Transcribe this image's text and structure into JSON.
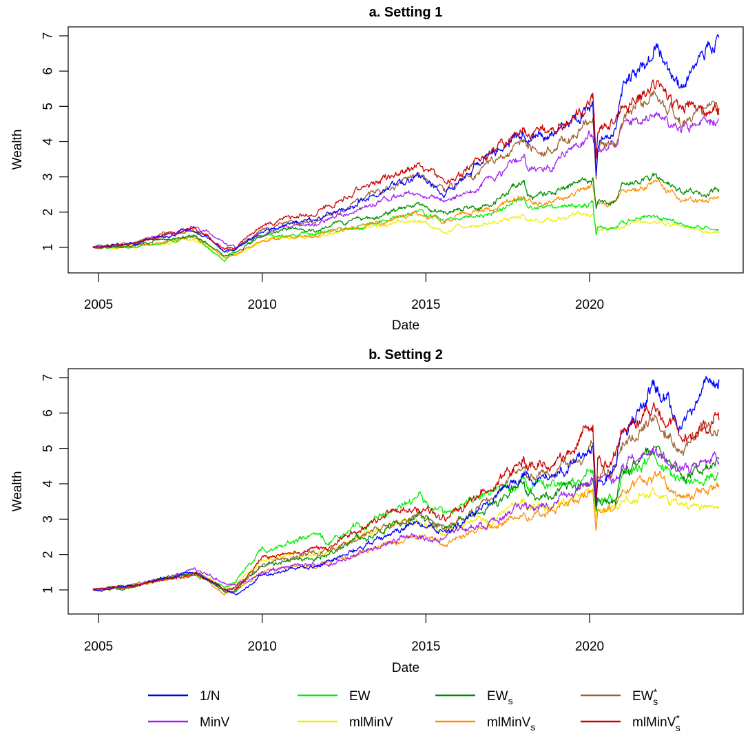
{
  "figure": {
    "legend": {
      "placement": "bottom",
      "columns": 4,
      "entries": [
        {
          "key": "1/N",
          "base": "1/N",
          "sup": "",
          "sub": "",
          "color": "#0000ff"
        },
        {
          "key": "EW",
          "base": "EW",
          "sup": "",
          "sub": "",
          "color": "#00ee00"
        },
        {
          "key": "EWs",
          "base": "EW",
          "sup": "",
          "sub": "s",
          "color": "#008b00"
        },
        {
          "key": "EW*s",
          "base": "EW",
          "sup": "*",
          "sub": "s",
          "color": "#9c6130"
        },
        {
          "key": "MinV",
          "base": "MinV",
          "sup": "",
          "sub": "",
          "color": "#a020f0"
        },
        {
          "key": "mlMinV",
          "base": "mlMinV",
          "sup": "",
          "sub": "",
          "color": "#eeee00"
        },
        {
          "key": "mlMinVs",
          "base": "mlMinV",
          "sup": "",
          "sub": "s",
          "color": "#ff8c00"
        },
        {
          "key": "mlMinV*s",
          "base": "mlMinV",
          "sup": "*",
          "sub": "s",
          "color": "#cd0000"
        }
      ]
    }
  },
  "chart_data": [
    {
      "type": "line",
      "title": "a. Setting 1",
      "xlabel": "Date",
      "ylabel": "Wealth",
      "xlim": [
        2004.0,
        2024.6
      ],
      "ylim": [
        0.3,
        7.25
      ],
      "xticks": [
        2005,
        2010,
        2015,
        2020
      ],
      "xtick_labels": [
        "2005",
        "2010",
        "2015",
        "2020"
      ],
      "yticks": [
        1,
        2,
        3,
        4,
        5,
        6,
        7
      ],
      "ytick_labels": [
        "1",
        "2",
        "3",
        "4",
        "5",
        "6",
        "7"
      ],
      "grid": false,
      "x": [
        2004.83,
        2006.0,
        2007.0,
        2007.9,
        2008.3,
        2008.85,
        2009.2,
        2010.0,
        2011.0,
        2011.6,
        2012.0,
        2013.0,
        2014.0,
        2014.8,
        2015.6,
        2016.0,
        2017.0,
        2018.0,
        2018.1,
        2018.9,
        2019.5,
        2020.1,
        2020.2,
        2020.25,
        2020.8,
        2021.0,
        2021.7,
        2022.0,
        2022.8,
        2023.5,
        2023.95
      ],
      "series": [
        {
          "name": "1/N",
          "values": [
            1.0,
            1.1,
            1.35,
            1.5,
            1.3,
            0.9,
            0.95,
            1.45,
            1.7,
            1.75,
            1.9,
            2.3,
            2.75,
            3.0,
            2.6,
            2.9,
            3.6,
            4.3,
            4.15,
            4.2,
            4.6,
            5.1,
            3.2,
            3.9,
            4.4,
            5.5,
            6.2,
            6.6,
            5.6,
            6.7,
            6.95
          ]
        },
        {
          "name": "EW",
          "values": [
            1.0,
            1.0,
            1.15,
            1.3,
            1.0,
            0.6,
            0.95,
            1.35,
            1.4,
            1.35,
            1.45,
            1.6,
            1.8,
            2.0,
            1.75,
            1.85,
            2.0,
            2.4,
            2.1,
            2.1,
            2.15,
            2.2,
            1.35,
            1.55,
            1.5,
            1.7,
            1.85,
            1.9,
            1.6,
            1.55,
            1.5
          ]
        },
        {
          "name": "EWs",
          "values": [
            1.0,
            1.05,
            1.2,
            1.35,
            1.15,
            0.75,
            0.85,
            1.35,
            1.5,
            1.45,
            1.6,
            1.8,
            2.0,
            2.2,
            1.9,
            2.05,
            2.2,
            2.9,
            2.5,
            2.55,
            2.75,
            2.95,
            2.1,
            2.25,
            2.3,
            2.7,
            2.95,
            3.0,
            2.6,
            2.6,
            2.65
          ]
        },
        {
          "name": "EW*s",
          "values": [
            1.0,
            1.1,
            1.35,
            1.45,
            1.3,
            0.9,
            0.95,
            1.55,
            1.7,
            1.75,
            1.85,
            2.3,
            2.75,
            3.0,
            2.6,
            2.8,
            3.4,
            4.0,
            3.75,
            3.85,
            4.2,
            4.6,
            3.0,
            3.8,
            3.9,
            4.6,
            5.1,
            5.4,
            4.6,
            4.8,
            4.75
          ]
        },
        {
          "name": "MinV",
          "values": [
            1.0,
            1.1,
            1.35,
            1.55,
            1.45,
            1.1,
            1.0,
            1.4,
            1.6,
            1.65,
            1.8,
            2.1,
            2.45,
            2.55,
            2.35,
            2.45,
            2.9,
            3.6,
            3.2,
            3.3,
            3.8,
            4.2,
            3.6,
            3.8,
            3.9,
            4.4,
            4.7,
            5.0,
            4.3,
            4.6,
            4.65
          ]
        },
        {
          "name": "mlMinV",
          "values": [
            1.0,
            1.0,
            1.1,
            1.25,
            1.05,
            0.7,
            0.8,
            1.2,
            1.3,
            1.3,
            1.4,
            1.55,
            1.7,
            1.75,
            1.45,
            1.6,
            1.7,
            1.95,
            1.75,
            1.8,
            1.9,
            2.0,
            1.55,
            1.5,
            1.55,
            1.6,
            1.75,
            1.75,
            1.6,
            1.45,
            1.4
          ]
        },
        {
          "name": "mlMinVs",
          "values": [
            1.0,
            1.05,
            1.15,
            1.3,
            1.1,
            0.7,
            0.8,
            1.2,
            1.3,
            1.3,
            1.4,
            1.6,
            1.8,
            2.0,
            1.75,
            1.9,
            2.1,
            2.45,
            2.25,
            2.3,
            2.5,
            2.75,
            2.15,
            2.25,
            2.25,
            2.5,
            2.7,
            2.75,
            2.4,
            2.35,
            2.4
          ]
        },
        {
          "name": "mlMinV*s",
          "values": [
            1.0,
            1.1,
            1.35,
            1.5,
            1.35,
            0.95,
            1.0,
            1.65,
            1.85,
            1.95,
            2.2,
            2.65,
            3.05,
            3.3,
            2.9,
            3.1,
            3.7,
            4.5,
            4.2,
            4.25,
            4.75,
            5.3,
            3.6,
            4.4,
            4.6,
            5.1,
            5.4,
            5.7,
            5.0,
            4.9,
            4.95
          ]
        }
      ]
    },
    {
      "type": "line",
      "title": "b. Setting 2",
      "xlabel": "Date",
      "ylabel": "Wealth",
      "xlim": [
        2004.0,
        2024.6
      ],
      "ylim": [
        0.3,
        7.25
      ],
      "xticks": [
        2005,
        2010,
        2015,
        2020
      ],
      "xtick_labels": [
        "2005",
        "2010",
        "2015",
        "2020"
      ],
      "yticks": [
        1,
        2,
        3,
        4,
        5,
        6,
        7
      ],
      "ytick_labels": [
        "1",
        "2",
        "3",
        "4",
        "5",
        "6",
        "7"
      ],
      "grid": false,
      "x": [
        2004.83,
        2006.0,
        2007.0,
        2007.9,
        2008.3,
        2008.85,
        2009.2,
        2010.0,
        2011.0,
        2011.6,
        2012.0,
        2013.0,
        2014.0,
        2014.8,
        2015.6,
        2016.0,
        2017.0,
        2018.0,
        2018.1,
        2018.9,
        2019.5,
        2020.1,
        2020.2,
        2020.25,
        2020.8,
        2021.0,
        2021.7,
        2022.0,
        2022.8,
        2023.5,
        2023.95
      ],
      "series": [
        {
          "name": "1/N",
          "values": [
            1.0,
            1.1,
            1.3,
            1.5,
            1.3,
            1.0,
            0.85,
            1.4,
            1.6,
            1.7,
            1.8,
            2.2,
            2.6,
            2.95,
            2.6,
            2.85,
            3.5,
            4.3,
            4.15,
            4.2,
            4.6,
            5.1,
            3.3,
            4.0,
            4.5,
            5.5,
            6.3,
            6.7,
            5.7,
            6.7,
            6.95
          ]
        },
        {
          "name": "EW",
          "values": [
            1.0,
            1.1,
            1.3,
            1.45,
            1.3,
            1.05,
            1.3,
            2.1,
            2.4,
            2.5,
            2.35,
            2.8,
            3.3,
            3.6,
            3.1,
            3.4,
            3.7,
            4.2,
            4.0,
            3.9,
            4.0,
            4.3,
            3.2,
            3.6,
            3.6,
            4.2,
            4.5,
            4.7,
            4.0,
            4.1,
            4.3
          ]
        },
        {
          "name": "EWs",
          "values": [
            1.0,
            1.1,
            1.3,
            1.45,
            1.3,
            0.95,
            1.0,
            1.65,
            1.85,
            1.9,
            2.0,
            2.45,
            2.8,
            3.1,
            2.7,
            2.95,
            3.3,
            4.1,
            3.75,
            3.75,
            3.9,
            4.2,
            3.2,
            3.55,
            3.6,
            4.4,
            4.7,
            4.9,
            4.2,
            4.5,
            4.7
          ]
        },
        {
          "name": "EW*s",
          "values": [
            1.0,
            1.1,
            1.3,
            1.45,
            1.35,
            1.0,
            1.05,
            1.7,
            1.95,
            2.05,
            2.1,
            2.5,
            2.85,
            3.1,
            2.7,
            2.95,
            3.6,
            4.4,
            4.2,
            4.3,
            4.6,
            5.0,
            3.3,
            4.2,
            4.5,
            5.2,
            5.6,
            5.9,
            5.0,
            5.5,
            5.5
          ]
        },
        {
          "name": "MinV",
          "values": [
            1.0,
            1.1,
            1.3,
            1.55,
            1.45,
            1.2,
            1.1,
            1.5,
            1.65,
            1.7,
            1.75,
            2.05,
            2.4,
            2.55,
            2.45,
            2.6,
            2.9,
            3.4,
            3.3,
            3.4,
            3.7,
            4.2,
            3.3,
            3.95,
            4.1,
            4.5,
            4.8,
            5.0,
            4.3,
            4.6,
            4.6
          ]
        },
        {
          "name": "mlMinV",
          "values": [
            1.0,
            1.1,
            1.3,
            1.45,
            1.35,
            1.0,
            1.2,
            1.85,
            2.0,
            2.05,
            2.1,
            2.5,
            2.8,
            2.95,
            2.55,
            2.75,
            3.0,
            3.5,
            3.3,
            3.35,
            3.55,
            3.9,
            3.0,
            3.3,
            3.35,
            3.5,
            3.7,
            3.8,
            3.3,
            3.4,
            3.3
          ]
        },
        {
          "name": "mlMinVs",
          "values": [
            1.0,
            1.1,
            1.3,
            1.45,
            1.3,
            0.85,
            1.0,
            1.5,
            1.65,
            1.65,
            1.75,
            2.05,
            2.35,
            2.6,
            2.3,
            2.45,
            2.75,
            3.3,
            3.1,
            3.2,
            3.45,
            3.9,
            2.6,
            3.2,
            3.4,
            3.8,
            4.1,
            4.2,
            3.6,
            3.8,
            3.9
          ]
        },
        {
          "name": "mlMinV*s",
          "values": [
            1.0,
            1.1,
            1.3,
            1.45,
            1.35,
            1.0,
            1.05,
            1.85,
            2.05,
            2.15,
            2.2,
            2.7,
            3.2,
            3.3,
            3.0,
            3.3,
            3.8,
            4.8,
            4.5,
            4.6,
            5.0,
            5.6,
            3.5,
            4.6,
            4.8,
            5.5,
            5.8,
            6.1,
            5.3,
            5.6,
            5.8
          ]
        }
      ]
    }
  ]
}
